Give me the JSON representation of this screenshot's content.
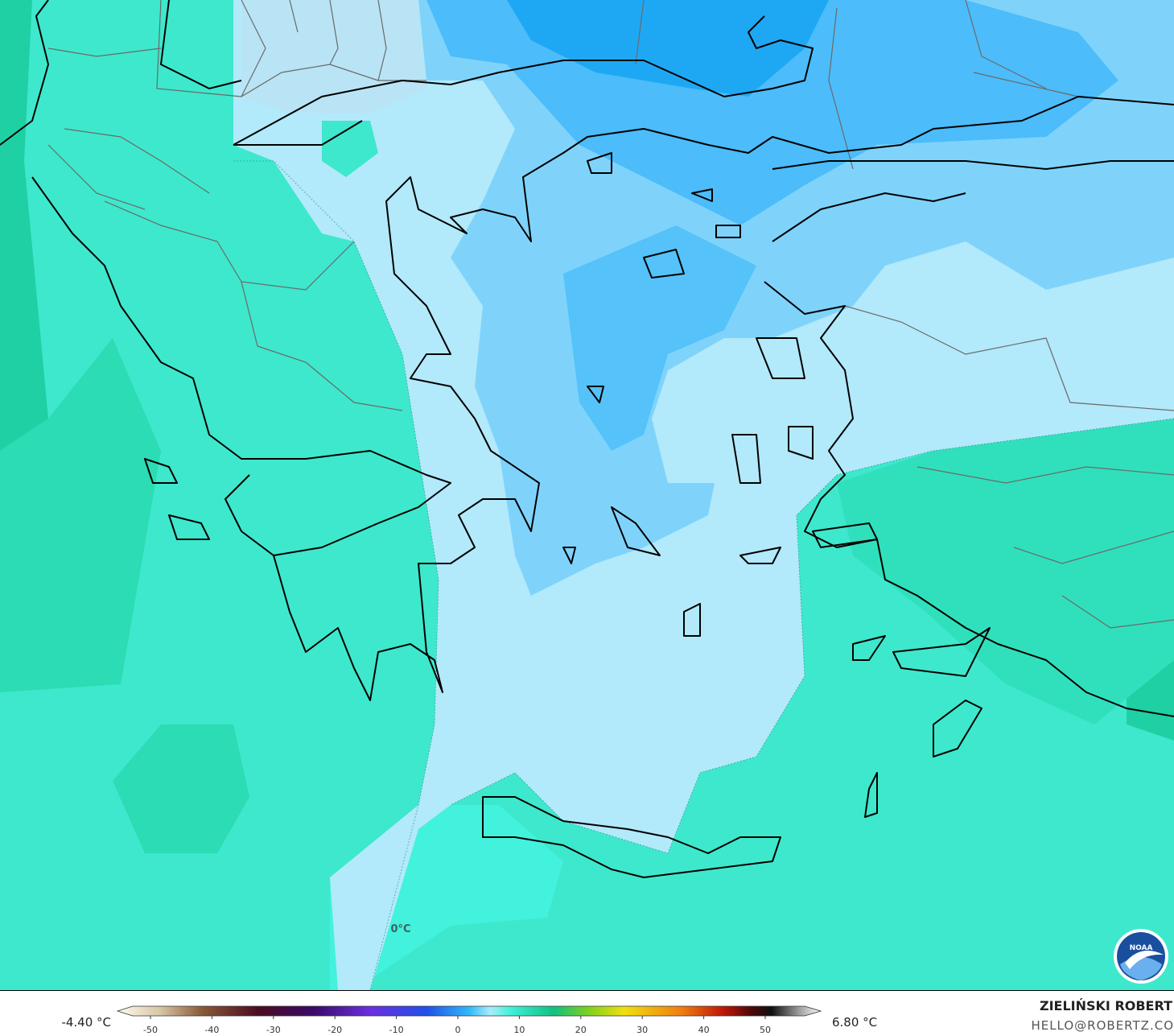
{
  "map": {
    "contour_label": "0°C"
  },
  "colorbar": {
    "min_label": "-4.40 °C",
    "max_label": "6.80 °C",
    "ticks": [
      -50,
      -40,
      -30,
      -20,
      -10,
      0,
      10,
      20,
      30,
      40,
      50
    ]
  },
  "credits": {
    "author": "ZIELIŃSKI ROBERT",
    "contact": "HELLO@ROBERTZ.CO",
    "logo": "NOAA"
  }
}
